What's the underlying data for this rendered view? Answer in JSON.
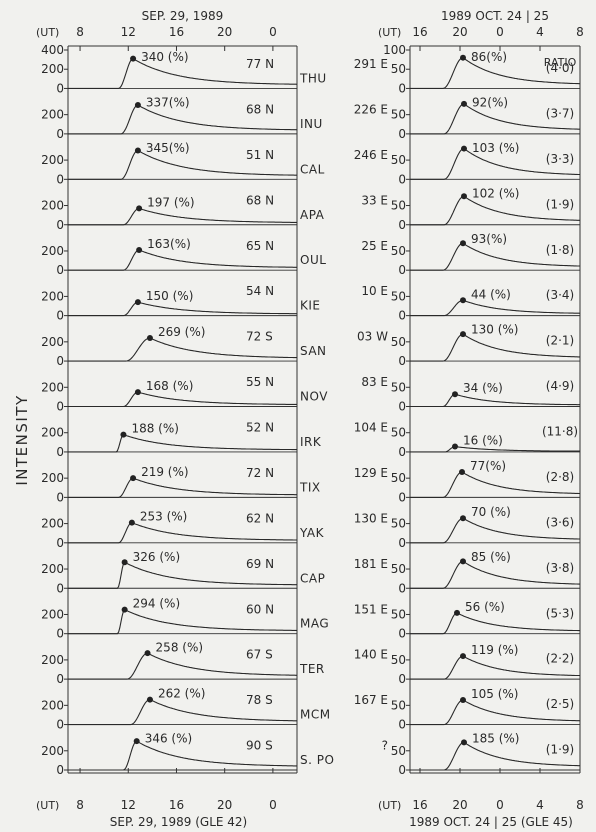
{
  "figure": {
    "ylabel": "INTENSITY",
    "station_codes": [
      "THU",
      "INU",
      "CAL",
      "APA",
      "OUL",
      "KIE",
      "SAN",
      "NOV",
      "IRK",
      "TIX",
      "YAK",
      "CAP",
      "MAG",
      "TER",
      "MCM",
      "S. PO"
    ]
  },
  "chart_data": [
    {
      "type": "line",
      "panel": "left",
      "top_title": "SEP. 29, 1989",
      "bottom_title": "SEP. 29,  1989 (GLE 42)",
      "axis_unit": "(UT)",
      "x_ticks": [
        "8",
        "12",
        "16",
        "20",
        "0"
      ],
      "x_tick_hours": [
        8,
        12,
        16,
        20,
        24
      ],
      "xlim": [
        7,
        26
      ],
      "y_ticks": [
        "400",
        "200",
        "0"
      ],
      "ylim": [
        0,
        400
      ],
      "series": [
        {
          "name": "THU",
          "peak_label": "340 (%)",
          "station_label": "77 N",
          "peak": [
            12.4,
            310
          ],
          "onset": 11.2
        },
        {
          "name": "INU",
          "peak_label": "337(%)",
          "station_label": "68 N",
          "peak": [
            12.8,
            300
          ],
          "onset": 11.4
        },
        {
          "name": "CAL",
          "peak_label": "345(%)",
          "station_label": "51 N",
          "peak": [
            12.8,
            300
          ],
          "onset": 11.4
        },
        {
          "name": "APA",
          "peak_label": "197 (%)",
          "station_label": "68 N",
          "peak": [
            12.9,
            170
          ],
          "onset": 11.6
        },
        {
          "name": "OUL",
          "peak_label": "163(%)",
          "station_label": "65 N",
          "peak": [
            12.9,
            210
          ],
          "onset": 11.6
        },
        {
          "name": "KIE",
          "peak_label": "150 (%)",
          "station_label": "54 N",
          "peak": [
            12.8,
            140
          ],
          "onset": 11.6
        },
        {
          "name": "SAN",
          "peak_label": "269 (%)",
          "station_label": "72 S",
          "peak": [
            13.8,
            240
          ],
          "onset": 11.8
        },
        {
          "name": "NOV",
          "peak_label": "168 (%)",
          "station_label": "55 N",
          "peak": [
            12.8,
            150
          ],
          "onset": 11.6
        },
        {
          "name": "IRK",
          "peak_label": "188 (%)",
          "station_label": "52 N",
          "peak": [
            11.6,
            180
          ],
          "onset": 11.0
        },
        {
          "name": "TIX",
          "peak_label": "219 (%)",
          "station_label": "72 N",
          "peak": [
            12.4,
            200
          ],
          "onset": 11.2
        },
        {
          "name": "YAK",
          "peak_label": "253 (%)",
          "station_label": "62 N",
          "peak": [
            12.3,
            210
          ],
          "onset": 11.2
        },
        {
          "name": "CAP",
          "peak_label": "326 (%)",
          "station_label": "69 N",
          "peak": [
            11.7,
            270
          ],
          "onset": 11.1
        },
        {
          "name": "MAG",
          "peak_label": "294 (%)",
          "station_label": "60 N",
          "peak": [
            11.7,
            250
          ],
          "onset": 11.1
        },
        {
          "name": "TER",
          "peak_label": "258 (%)",
          "station_label": "67 S",
          "peak": [
            13.6,
            270
          ],
          "onset": 11.9
        },
        {
          "name": "MCM",
          "peak_label": "262 (%)",
          "station_label": "78 S",
          "peak": [
            13.8,
            260
          ],
          "onset": 12.2
        },
        {
          "name": "S. PO",
          "peak_label": "346 (%)",
          "station_label": "90 S",
          "peak": [
            12.7,
            300
          ],
          "onset": 11.6
        }
      ]
    },
    {
      "type": "line",
      "panel": "right",
      "top_title": "1989 OCT. 24 | 25",
      "bottom_title": "1989  OCT. 24  |  25 (GLE 45)",
      "axis_unit": "(UT)",
      "x_ticks": [
        "16",
        "20",
        "0",
        "4",
        "8"
      ],
      "x_tick_hours": [
        16,
        20,
        24,
        28,
        32
      ],
      "xlim": [
        15,
        32
      ],
      "y_ticks": [
        "100",
        "50",
        "0"
      ],
      "ylim": [
        0,
        100
      ],
      "ratio_label": "RATIO",
      "series": [
        {
          "name": "THU",
          "peak_label": "86(%)",
          "station_label": "291 E",
          "ratio": "(4·0)",
          "peak": [
            20.3,
            80
          ],
          "onset": 18.3
        },
        {
          "name": "INU",
          "peak_label": "92(%)",
          "station_label": "226 E",
          "ratio": "(3·7)",
          "peak": [
            20.4,
            78
          ],
          "onset": 18.4
        },
        {
          "name": "CAL",
          "peak_label": "103 (%)",
          "station_label": "246 E",
          "ratio": "(3·3)",
          "peak": [
            20.4,
            80
          ],
          "onset": 18.4
        },
        {
          "name": "APA",
          "peak_label": "102 (%)",
          "station_label": "33 E",
          "ratio": "(1·9)",
          "peak": [
            20.4,
            74
          ],
          "onset": 18.4
        },
        {
          "name": "OUL",
          "peak_label": "93(%)",
          "station_label": "25 E",
          "ratio": "(1·8)",
          "peak": [
            20.3,
            70
          ],
          "onset": 18.3
        },
        {
          "name": "KIE",
          "peak_label": "44 (%)",
          "station_label": "10 E",
          "ratio": "(3·4)",
          "peak": [
            20.3,
            40
          ],
          "onset": 18.4
        },
        {
          "name": "SAN",
          "peak_label": "130 (%)",
          "station_label": "03 W",
          "ratio": "(2·1)",
          "peak": [
            20.3,
            70
          ],
          "onset": 18.3
        },
        {
          "name": "NOV",
          "peak_label": "34 (%)",
          "station_label": "83 E",
          "ratio": "(4·9)",
          "peak": [
            19.5,
            32
          ],
          "onset": 18.3
        },
        {
          "name": "IRK",
          "peak_label": "16 (%)",
          "station_label": "104 E",
          "ratio": "(11·8)",
          "peak": [
            19.5,
            14
          ],
          "onset": 18.5
        },
        {
          "name": "TIX",
          "peak_label": "77(%)",
          "station_label": "129 E",
          "ratio": "(2·8)",
          "peak": [
            20.2,
            66
          ],
          "onset": 18.3
        },
        {
          "name": "YAK",
          "peak_label": "70 (%)",
          "station_label": "130 E",
          "ratio": "(3·6)",
          "peak": [
            20.3,
            64
          ],
          "onset": 18.3
        },
        {
          "name": "CAP",
          "peak_label": "85 (%)",
          "station_label": "181 E",
          "ratio": "(3·8)",
          "peak": [
            20.3,
            70
          ],
          "onset": 18.3
        },
        {
          "name": "MAG",
          "peak_label": "56 (%)",
          "station_label": "151 E",
          "ratio": "(5·3)",
          "peak": [
            19.7,
            54
          ],
          "onset": 18.3
        },
        {
          "name": "TER",
          "peak_label": "119 (%)",
          "station_label": "140 E",
          "ratio": "(2·2)",
          "peak": [
            20.3,
            60
          ],
          "onset": 18.4
        },
        {
          "name": "MCM",
          "peak_label": "105 (%)",
          "station_label": "167 E",
          "ratio": "(2·5)",
          "peak": [
            20.3,
            64
          ],
          "onset": 18.4
        },
        {
          "name": "S. PO",
          "peak_label": "185 (%)",
          "station_label": "?",
          "ratio": "(1·9)",
          "peak": [
            20.4,
            72
          ],
          "onset": 18.4
        }
      ]
    }
  ]
}
